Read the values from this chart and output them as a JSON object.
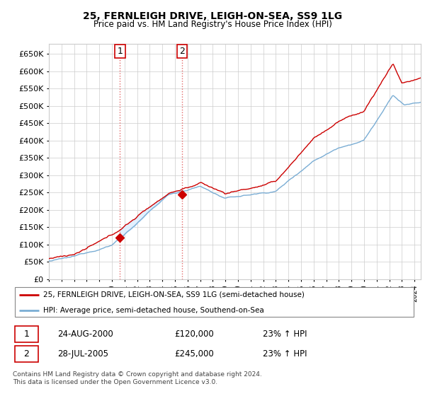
{
  "title": "25, FERNLEIGH DRIVE, LEIGH-ON-SEA, SS9 1LG",
  "subtitle": "Price paid vs. HM Land Registry's House Price Index (HPI)",
  "legend_line1": "25, FERNLEIGH DRIVE, LEIGH-ON-SEA, SS9 1LG (semi-detached house)",
  "legend_line2": "HPI: Average price, semi-detached house, Southend-on-Sea",
  "transaction1_date": "24-AUG-2000",
  "transaction1_price": "£120,000",
  "transaction1_hpi": "23% ↑ HPI",
  "transaction2_date": "28-JUL-2005",
  "transaction2_price": "£245,000",
  "transaction2_hpi": "23% ↑ HPI",
  "footer": "Contains HM Land Registry data © Crown copyright and database right 2024.\nThis data is licensed under the Open Government Licence v3.0.",
  "red_color": "#cc0000",
  "blue_color": "#7aadd4",
  "blue_fill_color": "#ddeeff",
  "vline_color": "#dd4444",
  "grid_color": "#cccccc",
  "ylim": [
    0,
    680000
  ],
  "yticks": [
    0,
    50000,
    100000,
    150000,
    200000,
    250000,
    300000,
    350000,
    400000,
    450000,
    500000,
    550000,
    600000,
    650000
  ],
  "start_year": 1995.0,
  "end_year": 2024.5,
  "t1": 2000.646,
  "t2": 2005.556,
  "p1": 120000,
  "p2": 245000
}
